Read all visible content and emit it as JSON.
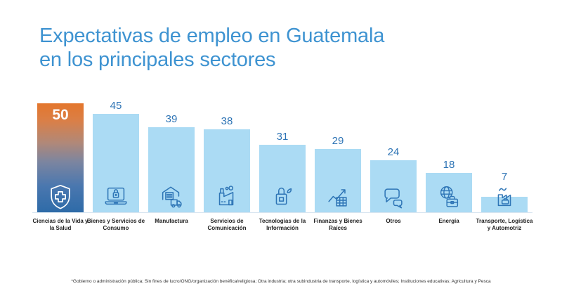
{
  "title": {
    "line1": "Expectativas de empleo en Guatemala",
    "line2": "en los principales sectores",
    "color": "#3E93D1"
  },
  "footnote": "*Gobierno o administración pública; Sin fines de lucro/ONG/organización benéfica/religiosa; Otra industria; otra subindustria de transporte, logística y automóviles; Instituciones educativas; Agricultura y Pesca",
  "colors": {
    "title_blue": "#3E93D1",
    "bar_blue": "#ABDBF4",
    "value_label_blue": "#2E74B5",
    "icon_stroke_blue": "#2E75B6",
    "highlight_gradient_top": "#E4762C",
    "highlight_gradient_bottom": "#2E6BA8",
    "highlight_value_text": "#FFFFFF",
    "baseline": "#D8E5F0"
  },
  "chart_data": {
    "type": "bar",
    "title": "Expectativas de empleo en Guatemala en los principales sectores",
    "xlabel": "",
    "ylabel": "",
    "ylim": [
      0,
      50
    ],
    "grid": false,
    "legend": false,
    "value_labels": true,
    "categories": [
      "Ciencias de la Vida y la Salud",
      "Bienes y Servicios de Consumo",
      "Manufactura",
      "Servicios de Comunicación",
      "Tecnologías de la Información",
      "Finanzas y Bienes Raíces",
      "Otros",
      "Energía",
      "Transporte, Logística y Automotriz"
    ],
    "values": [
      50,
      45,
      39,
      38,
      31,
      29,
      24,
      18,
      7
    ],
    "items": [
      {
        "label": "Ciencias de la Vida y la Salud",
        "value": 50,
        "icon": "shield-medical-icon",
        "highlight": true
      },
      {
        "label": "Bienes y Servicios de Consumo",
        "value": 45,
        "icon": "laptop-lock-icon",
        "highlight": false
      },
      {
        "label": "Manufactura",
        "value": 39,
        "icon": "warehouse-truck-icon",
        "highlight": false
      },
      {
        "label": "Servicios de Comunicación",
        "value": 38,
        "icon": "factory-smoke-icon",
        "highlight": false
      },
      {
        "label": "Tecnologías de la Información",
        "value": 31,
        "icon": "padlock-leaf-icon",
        "highlight": false
      },
      {
        "label": "Finanzas y Bienes Raíces",
        "value": 29,
        "icon": "growth-chart-icon",
        "highlight": false
      },
      {
        "label": "Otros",
        "value": 24,
        "icon": "speech-bubbles-icon",
        "highlight": false
      },
      {
        "label": "Energía",
        "value": 18,
        "icon": "globe-briefcase-icon",
        "highlight": false
      },
      {
        "label": "Transporte, Logística y Automotriz",
        "value": 7,
        "icon": "factory-vehicle-icon",
        "highlight": false
      }
    ]
  }
}
